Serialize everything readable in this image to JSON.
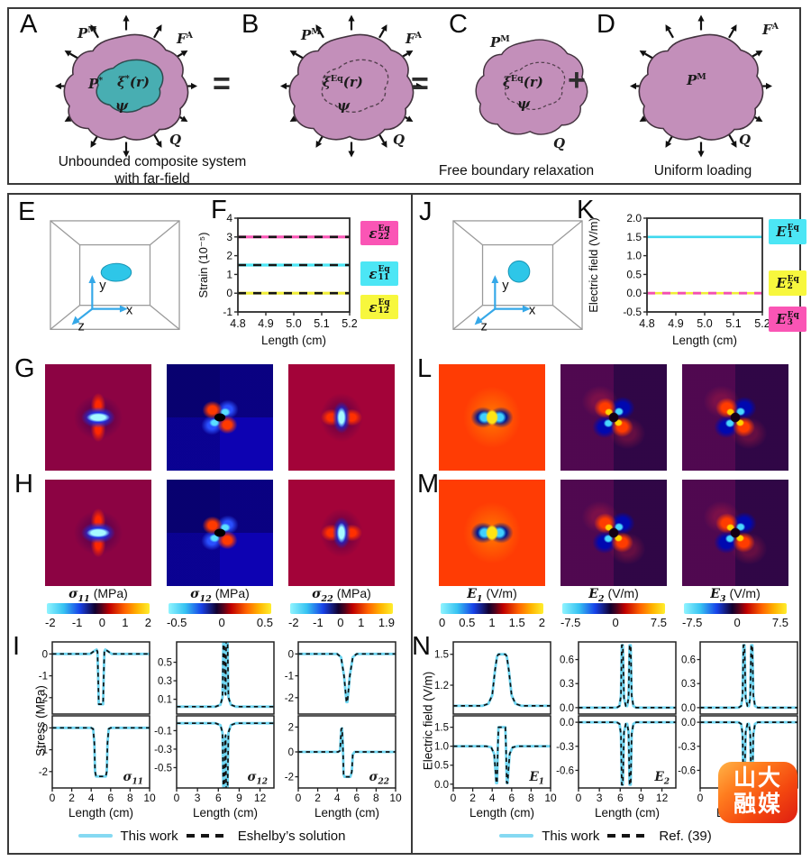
{
  "top": {
    "op_ab": "=",
    "op_bc": "=",
    "op_cd": "+",
    "panel_a": {
      "letter": "A",
      "matrix_base": "P",
      "matrix_sup": "M",
      "far_base": "F",
      "far_sup": "A",
      "inc_base": "P",
      "inc_sup": "*",
      "xi_base": "ξ",
      "xi_sup": "*",
      "xi_arg": "(r)",
      "psi": "ψ",
      "q": "Q",
      "caption1": "Unbounded composite system",
      "caption2": "with far-field"
    },
    "panel_b": {
      "letter": "B",
      "matrix_base": "P",
      "matrix_sup": "M",
      "far_base": "F",
      "far_sup": "A",
      "xi_base": "ξ",
      "xi_sup": "Eq",
      "xi_arg": "(r)",
      "psi": "ψ",
      "q": "Q"
    },
    "panel_c": {
      "letter": "C",
      "matrix_base": "P",
      "matrix_sup": "M",
      "xi_base": "ξ",
      "xi_sup": "Eq",
      "xi_arg": "(r)",
      "psi": "ψ",
      "q": "Q",
      "caption": "Free boundary relaxation"
    },
    "panel_d": {
      "letter": "D",
      "matrix_base": "P",
      "matrix_sup": "M",
      "far_base": "F",
      "far_sup": "A",
      "q": "Q",
      "caption": "Uniform loading"
    }
  },
  "letters": {
    "e": "E",
    "f": "F",
    "g": "G",
    "h": "H",
    "i": "I",
    "j": "J",
    "k": "K",
    "l": "L",
    "m": "M",
    "n": "N"
  },
  "axes3d": {
    "x": "x",
    "y": "y",
    "z": "z"
  },
  "stress_ylabel": "Stress (MPa)",
  "efield_ylabel": "Electric field (V/m)",
  "legend_f": [
    {
      "base": "ε",
      "sub": "22",
      "sup": "Eq",
      "color": "#fa55b5"
    },
    {
      "base": "ε",
      "sub": "11",
      "sup": "Eq",
      "color": "#4ce6f5"
    },
    {
      "base": "ε",
      "sub": "12",
      "sup": "Eq",
      "color": "#f7f73d"
    }
  ],
  "legend_k": [
    {
      "base": "E",
      "sub": "1",
      "sup": "Eq",
      "color": "#4ce6f5"
    },
    {
      "base": "E",
      "sub": "2",
      "sup": "Eq",
      "color": "#f7f73d"
    },
    {
      "base": "E",
      "sub": "3",
      "sup": "Eq",
      "color": "#fa55b5"
    }
  ],
  "colorbars": [
    {
      "sym": "σ",
      "sub": "11",
      "unit": "(MPa)",
      "ticks": [
        "-2",
        "-1",
        "0",
        "1",
        "2"
      ]
    },
    {
      "sym": "σ",
      "sub": "12",
      "unit": "(MPa)",
      "ticks": [
        "-0.5",
        "0",
        "0.5"
      ]
    },
    {
      "sym": "σ",
      "sub": "22",
      "unit": "(MPa)",
      "ticks": [
        "-2",
        "-1",
        "0",
        "1",
        "1.9"
      ]
    },
    {
      "sym": "E",
      "sub": "1",
      "unit": "(V/m)",
      "ticks": [
        "0",
        "0.5",
        "1",
        "1.5",
        "2"
      ]
    },
    {
      "sym": "E",
      "sub": "2",
      "unit": "(V/m)",
      "ticks": [
        "-7.5",
        "0",
        "7.5"
      ]
    },
    {
      "sym": "E",
      "sub": "3",
      "unit": "(V/m)",
      "ticks": [
        "-7.5",
        "0",
        "7.5"
      ]
    }
  ],
  "legend_left": {
    "solid": "This work",
    "dashed": "Eshelby’s solution"
  },
  "legend_right": {
    "solid": "This work",
    "dashed": "Ref. (39)"
  },
  "watermark": {
    "line1": "山大",
    "line2": "融媒"
  },
  "chart_data": [
    {
      "id": "F",
      "type": "line",
      "panel": "F",
      "ylabel": "Strain (10⁻⁵)",
      "xlabel": "Length (cm)",
      "xlim": [
        4.8,
        5.2
      ],
      "ylim": [
        -1,
        4
      ],
      "xticks": [
        "4.8",
        "4.9",
        "5.0",
        "5.1",
        "5.2"
      ],
      "yticks": [
        "4",
        "3",
        "2",
        "1",
        "0",
        "-1"
      ],
      "series": [
        {
          "name": "ε22 Eq",
          "value": 3,
          "color": "#fa55b5",
          "overlay": "#141414"
        },
        {
          "name": "ε11 Eq",
          "value": 1.5,
          "color": "#4ce6f5",
          "overlay": "#141414"
        },
        {
          "name": "ε12 Eq",
          "value": 0,
          "color": "#f0ee38",
          "overlay": "#141414"
        }
      ]
    },
    {
      "id": "K",
      "type": "line",
      "panel": "K",
      "ylabel": "Electric field (V/m)",
      "xlabel": "Length (cm)",
      "xlim": [
        4.8,
        5.2
      ],
      "ylim": [
        -0.5,
        2.0
      ],
      "xticks": [
        "4.8",
        "4.9",
        "5.0",
        "5.1",
        "5.2"
      ],
      "yticks": [
        "2.0",
        "1.5",
        "1.0",
        "0.5",
        "0.0",
        "-0.5"
      ],
      "series": [
        {
          "name": "E1 Eq",
          "value": 1.5,
          "color": "#3fd8ee"
        },
        {
          "name": "E2 Eq",
          "value": 0,
          "color": "#f0ee38"
        },
        {
          "name": "E3 Eq",
          "value": 0,
          "color": "#f24fb0",
          "dash": true
        }
      ]
    },
    {
      "id": "I1",
      "type": "dual-line",
      "panel": "I",
      "sym": "σ",
      "sub": "11",
      "xlabel": "Length (cm)",
      "xlim": [
        0,
        10
      ],
      "xticks": [
        "0",
        "2",
        "4",
        "6",
        "8",
        "10"
      ],
      "top": {
        "ylim": [
          -2.75,
          0.55
        ],
        "yticks": [
          "0",
          "-1",
          "-2"
        ],
        "points": [
          [
            0,
            0
          ],
          [
            3.9,
            0
          ],
          [
            4.3,
            0.13
          ],
          [
            4.55,
            0.2
          ],
          [
            4.65,
            0.1
          ],
          [
            4.72,
            -1.2
          ],
          [
            4.78,
            -2.3
          ],
          [
            5.22,
            -2.3
          ],
          [
            5.28,
            -1.2
          ],
          [
            5.35,
            0.1
          ],
          [
            5.45,
            0.2
          ],
          [
            5.7,
            0.13
          ],
          [
            6.1,
            0
          ],
          [
            10,
            0
          ]
        ]
      },
      "bottom": {
        "ylim": [
          -2.75,
          0.55
        ],
        "yticks": [
          "0",
          "-1",
          "-2"
        ],
        "points": [
          [
            0,
            0
          ],
          [
            4.0,
            0
          ],
          [
            4.2,
            -0.05
          ],
          [
            4.32,
            -0.7
          ],
          [
            4.4,
            -2.0
          ],
          [
            4.5,
            -2.22
          ],
          [
            5.5,
            -2.22
          ],
          [
            5.6,
            -2.0
          ],
          [
            5.68,
            -0.7
          ],
          [
            5.8,
            -0.05
          ],
          [
            6.0,
            0
          ],
          [
            10,
            0
          ]
        ]
      }
    },
    {
      "id": "I2",
      "type": "dual-line",
      "panel": "I",
      "sym": "σ",
      "sub": "12",
      "xlabel": "Length (cm)",
      "xlim": [
        0,
        14
      ],
      "xticks": [
        "0",
        "3",
        "6",
        "9",
        "12"
      ],
      "top": {
        "ylim": [
          -0.06,
          0.72
        ],
        "yticks": [
          "0.5",
          "0.3",
          "0.1"
        ],
        "points": [
          [
            0,
            0.02
          ],
          [
            5.6,
            0.02
          ],
          [
            6.3,
            0.04
          ],
          [
            6.6,
            0.12
          ],
          [
            6.75,
            0.9
          ],
          [
            6.85,
            0.9
          ],
          [
            6.95,
            0.2
          ],
          [
            7.05,
            0.15
          ],
          [
            7.15,
            0.9
          ],
          [
            7.3,
            0.9
          ],
          [
            7.45,
            0.12
          ],
          [
            7.8,
            0.04
          ],
          [
            8.5,
            0.02
          ],
          [
            14,
            0.02
          ]
        ]
      },
      "bottom": {
        "ylim": [
          -0.72,
          0.06
        ],
        "yticks": [
          "-0.1",
          "-0.3",
          "-0.5"
        ],
        "points": [
          [
            0,
            -0.02
          ],
          [
            5.6,
            -0.02
          ],
          [
            6.3,
            -0.04
          ],
          [
            6.6,
            -0.12
          ],
          [
            6.75,
            -0.9
          ],
          [
            6.85,
            -0.9
          ],
          [
            6.95,
            -0.2
          ],
          [
            7.05,
            -0.15
          ],
          [
            7.15,
            -0.9
          ],
          [
            7.3,
            -0.9
          ],
          [
            7.45,
            -0.12
          ],
          [
            7.8,
            -0.04
          ],
          [
            8.5,
            -0.02
          ],
          [
            14,
            -0.02
          ]
        ]
      }
    },
    {
      "id": "I3",
      "type": "dual-line",
      "panel": "I",
      "sym": "σ",
      "sub": "22",
      "xlabel": "Length (cm)",
      "xlim": [
        0,
        10
      ],
      "xticks": [
        "0",
        "2",
        "4",
        "6",
        "8",
        "10"
      ],
      "top": {
        "ylim": [
          -2.75,
          0.55
        ],
        "yticks": [
          "0",
          "-1",
          "-2"
        ],
        "points": [
          [
            0,
            0
          ],
          [
            4.0,
            0
          ],
          [
            4.4,
            -0.15
          ],
          [
            4.7,
            -1.0
          ],
          [
            4.95,
            -2.2
          ],
          [
            5.05,
            -2.2
          ],
          [
            5.3,
            -1.0
          ],
          [
            5.6,
            -0.15
          ],
          [
            6.0,
            0
          ],
          [
            10,
            0
          ]
        ]
      },
      "bottom": {
        "ylim": [
          -2.9,
          2.9
        ],
        "yticks": [
          "2",
          "0",
          "-2"
        ],
        "points": [
          [
            0,
            0
          ],
          [
            4.1,
            0
          ],
          [
            4.3,
            0.1
          ],
          [
            4.42,
            1.85
          ],
          [
            4.5,
            1.9
          ],
          [
            4.58,
            0.5
          ],
          [
            4.66,
            -1.8
          ],
          [
            4.75,
            -2.0
          ],
          [
            5.35,
            -2.0
          ],
          [
            5.5,
            -1.6
          ],
          [
            5.6,
            -0.2
          ],
          [
            5.8,
            0
          ],
          [
            10,
            0
          ]
        ]
      }
    },
    {
      "id": "N1",
      "type": "dual-line",
      "panel": "N",
      "sym": "E",
      "sub": "1",
      "xlabel": "Length (cm)",
      "xlim": [
        0,
        10
      ],
      "xticks": [
        "0",
        "2",
        "4",
        "6",
        "8",
        "10"
      ],
      "top": {
        "ylim": [
          0.92,
          1.62
        ],
        "yticks": [
          "1.5",
          "1.2"
        ],
        "points": [
          [
            0,
            1
          ],
          [
            3,
            1
          ],
          [
            3.6,
            1.02
          ],
          [
            4,
            1.1
          ],
          [
            4.3,
            1.35
          ],
          [
            4.5,
            1.48
          ],
          [
            4.65,
            1.5
          ],
          [
            5.35,
            1.5
          ],
          [
            5.5,
            1.48
          ],
          [
            5.7,
            1.35
          ],
          [
            6,
            1.1
          ],
          [
            6.4,
            1.02
          ],
          [
            7,
            1
          ],
          [
            10,
            1
          ]
        ]
      },
      "bottom": {
        "ylim": [
          -0.1,
          1.8
        ],
        "yticks": [
          "1.5",
          "1.0",
          "0.5",
          "0.0"
        ],
        "points": [
          [
            0,
            1
          ],
          [
            3.4,
            1
          ],
          [
            3.9,
            0.97
          ],
          [
            4.2,
            0.8
          ],
          [
            4.35,
            0.3
          ],
          [
            4.42,
            0.03
          ],
          [
            4.5,
            0.03
          ],
          [
            4.58,
            1
          ],
          [
            4.65,
            1.5
          ],
          [
            5.35,
            1.5
          ],
          [
            5.42,
            1
          ],
          [
            5.5,
            0.03
          ],
          [
            5.58,
            0.03
          ],
          [
            5.65,
            0.3
          ],
          [
            5.8,
            0.8
          ],
          [
            6.1,
            0.97
          ],
          [
            6.6,
            1
          ],
          [
            10,
            1
          ]
        ]
      }
    },
    {
      "id": "N2",
      "type": "dual-line",
      "panel": "N",
      "sym": "E",
      "sub": "2",
      "xlabel": "Length (cm)",
      "xlim": [
        0,
        14
      ],
      "xticks": [
        "0",
        "3",
        "6",
        "9",
        "12"
      ],
      "top": {
        "ylim": [
          -0.08,
          0.82
        ],
        "yticks": [
          "0.6",
          "0.3",
          "0.0"
        ],
        "points": [
          [
            0,
            0
          ],
          [
            5.5,
            0
          ],
          [
            5.9,
            0.02
          ],
          [
            6.1,
            0.15
          ],
          [
            6.22,
            0.78
          ],
          [
            6.38,
            0.78
          ],
          [
            6.55,
            0.12
          ],
          [
            6.8,
            0.02
          ],
          [
            7.0,
            0.02
          ],
          [
            7.2,
            0.12
          ],
          [
            7.35,
            0.78
          ],
          [
            7.5,
            0.78
          ],
          [
            7.65,
            0.15
          ],
          [
            7.9,
            0.02
          ],
          [
            8.3,
            0
          ],
          [
            14,
            0
          ]
        ]
      },
      "bottom": {
        "ylim": [
          -0.82,
          0.08
        ],
        "yticks": [
          "0.0",
          "-0.3",
          "-0.6"
        ],
        "points": [
          [
            0,
            0
          ],
          [
            5.5,
            0
          ],
          [
            5.9,
            -0.02
          ],
          [
            6.1,
            -0.15
          ],
          [
            6.22,
            -0.78
          ],
          [
            6.38,
            -0.78
          ],
          [
            6.55,
            -0.12
          ],
          [
            6.8,
            -0.02
          ],
          [
            7.0,
            -0.02
          ],
          [
            7.2,
            -0.12
          ],
          [
            7.35,
            -0.78
          ],
          [
            7.5,
            -0.78
          ],
          [
            7.65,
            -0.15
          ],
          [
            7.9,
            -0.02
          ],
          [
            8.3,
            0
          ],
          [
            14,
            0
          ]
        ]
      }
    },
    {
      "id": "N3",
      "type": "dual-line",
      "panel": "N",
      "sym": "E",
      "sub": "3",
      "xlabel": "Length (cm)",
      "xlim": [
        0,
        14
      ],
      "xticks": [
        "0",
        "3",
        "6",
        "9",
        "12"
      ],
      "top": {
        "ylim": [
          -0.08,
          0.82
        ],
        "yticks": [
          "0.6",
          "0.3",
          "0.0"
        ],
        "points": [
          [
            0,
            0
          ],
          [
            5.5,
            0
          ],
          [
            5.9,
            0.02
          ],
          [
            6.1,
            0.15
          ],
          [
            6.22,
            0.78
          ],
          [
            6.38,
            0.78
          ],
          [
            6.55,
            0.12
          ],
          [
            6.8,
            0.02
          ],
          [
            7.0,
            0.02
          ],
          [
            7.2,
            0.12
          ],
          [
            7.35,
            0.78
          ],
          [
            7.5,
            0.78
          ],
          [
            7.65,
            0.15
          ],
          [
            7.9,
            0.02
          ],
          [
            8.3,
            0
          ],
          [
            14,
            0
          ]
        ]
      },
      "bottom": {
        "ylim": [
          -0.82,
          0.08
        ],
        "yticks": [
          "0.0",
          "-0.3",
          "-0.6"
        ],
        "points": [
          [
            0,
            0
          ],
          [
            5.5,
            0
          ],
          [
            5.9,
            -0.02
          ],
          [
            6.1,
            -0.15
          ],
          [
            6.22,
            -0.78
          ],
          [
            6.38,
            -0.78
          ],
          [
            6.55,
            -0.12
          ],
          [
            6.8,
            -0.02
          ],
          [
            7.0,
            -0.02
          ],
          [
            7.2,
            -0.12
          ],
          [
            7.35,
            -0.78
          ],
          [
            7.5,
            -0.78
          ],
          [
            7.65,
            -0.15
          ],
          [
            7.9,
            -0.02
          ],
          [
            8.3,
            0
          ],
          [
            14,
            0
          ]
        ]
      }
    }
  ]
}
